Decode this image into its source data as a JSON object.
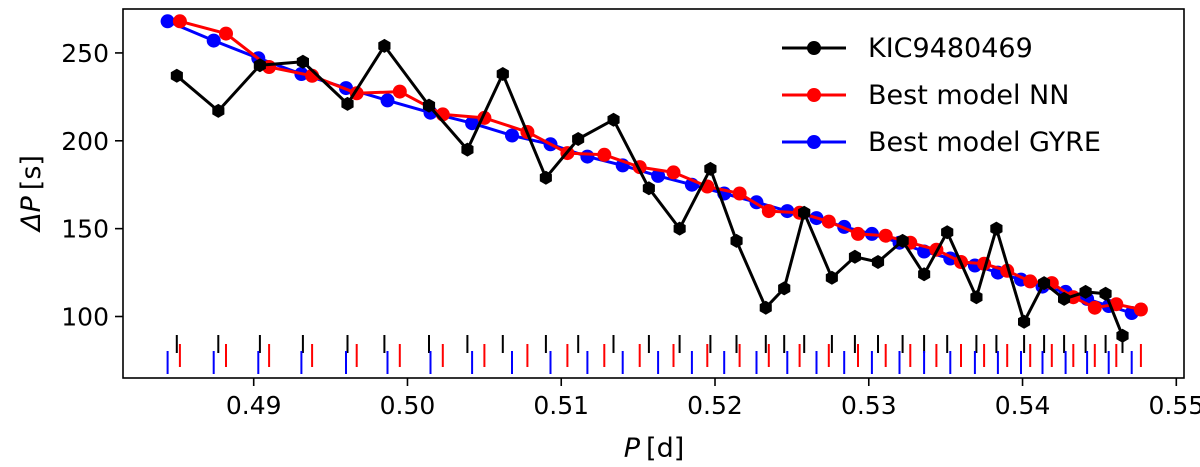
{
  "chart_data": {
    "type": "line",
    "xlabel_var": "P",
    "xlabel_unit": "[d]",
    "ylabel_var": "ΔP",
    "ylabel_unit": "[s]",
    "xlim": [
      0.4815,
      0.5505
    ],
    "ylim": [
      65,
      275
    ],
    "xticks": [
      0.49,
      0.5,
      0.51,
      0.52,
      0.53,
      0.54,
      0.55
    ],
    "xtick_labels": [
      "0.49",
      "0.50",
      "0.51",
      "0.52",
      "0.53",
      "0.54",
      "0.55"
    ],
    "yticks": [
      100,
      150,
      200,
      250
    ],
    "ytick_labels": [
      "100",
      "150",
      "200",
      "250"
    ],
    "grid": false,
    "legend_position": "top-right",
    "series": [
      {
        "name": "KIC9480469",
        "color": "#000000",
        "marker": "hexagon",
        "x": [
          0.485,
          0.4877,
          0.4904,
          0.4932,
          0.4961,
          0.4985,
          0.5014,
          0.5039,
          0.5062,
          0.509,
          0.5111,
          0.5134,
          0.5157,
          0.5177,
          0.5197,
          0.5214,
          0.5233,
          0.5245,
          0.5258,
          0.5276,
          0.5291,
          0.5306,
          0.5322,
          0.5336,
          0.5351,
          0.537,
          0.5383,
          0.5401,
          0.5414,
          0.5427,
          0.5441,
          0.5454,
          0.5465
        ],
        "y": [
          237,
          217,
          243,
          245,
          221,
          254,
          220,
          195,
          238,
          179,
          201,
          212,
          173,
          150,
          184,
          143,
          105,
          116,
          159,
          122,
          134,
          131,
          143,
          124,
          148,
          111,
          150,
          97,
          119,
          110,
          114,
          113,
          89
        ]
      },
      {
        "name": "Best model NN",
        "color": "#ff0000",
        "marker": "circle",
        "x": [
          0.4852,
          0.4882,
          0.491,
          0.4938,
          0.4967,
          0.4995,
          0.5023,
          0.505,
          0.5078,
          0.5104,
          0.5128,
          0.5151,
          0.5173,
          0.5195,
          0.5216,
          0.5235,
          0.5255,
          0.5274,
          0.5293,
          0.5311,
          0.5327,
          0.5344,
          0.536,
          0.5375,
          0.539,
          0.5405,
          0.5419,
          0.5433,
          0.5447,
          0.5461,
          0.5477
        ],
        "y": [
          268,
          261,
          242,
          237,
          227,
          228,
          215,
          213,
          205,
          193,
          192,
          185,
          182,
          174,
          170,
          160,
          159,
          154,
          147,
          146,
          142,
          138,
          131,
          130,
          126,
          120,
          119,
          111,
          105,
          107,
          104
        ]
      },
      {
        "name": "Best model GYRE",
        "color": "#0000ff",
        "marker": "circle",
        "x": [
          0.4844,
          0.4874,
          0.4903,
          0.4931,
          0.496,
          0.4987,
          0.5015,
          0.5042,
          0.5068,
          0.5093,
          0.5117,
          0.514,
          0.5163,
          0.5185,
          0.5206,
          0.5227,
          0.5247,
          0.5266,
          0.5284,
          0.5302,
          0.532,
          0.5336,
          0.5353,
          0.5369,
          0.5384,
          0.5399,
          0.5413,
          0.5428,
          0.5442,
          0.5456,
          0.5471
        ],
        "y": [
          268,
          257,
          247,
          238,
          230,
          223,
          216,
          210,
          203,
          198,
          191,
          186,
          180,
          175,
          170,
          165,
          160,
          156,
          151,
          147,
          142,
          137,
          133,
          129,
          125,
          121,
          117,
          114,
          110,
          106,
          102
        ]
      }
    ]
  }
}
